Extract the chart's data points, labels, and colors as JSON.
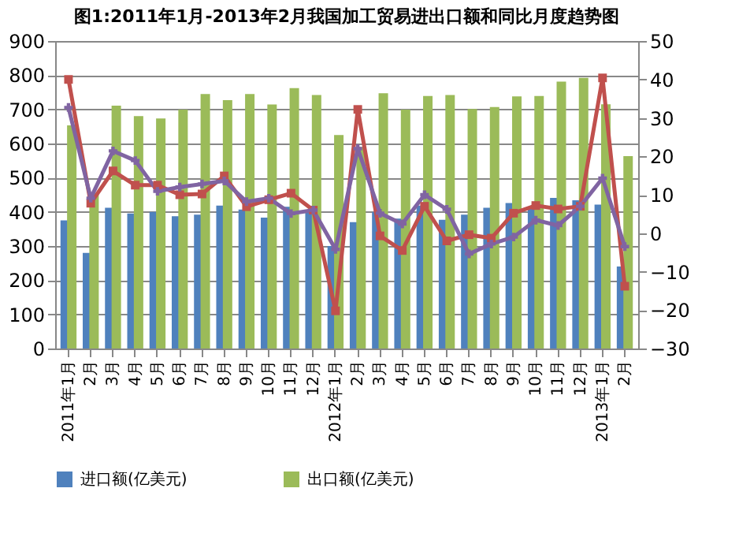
{
  "chart_data": {
    "type": "bar",
    "title": "图1:2011年1月-2013年2月我国加工贸易进出口额和同比月度趋势图",
    "categories": [
      "2011年1月",
      "2月",
      "3月",
      "4月",
      "5月",
      "6月",
      "7月",
      "8月",
      "9月",
      "10月",
      "11月",
      "12月",
      "2012年1月",
      "2月",
      "3月",
      "4月",
      "5月",
      "6月",
      "7月",
      "8月",
      "9月",
      "10月",
      "11月",
      "12月",
      "2013年1月",
      "2月"
    ],
    "series": [
      {
        "name": "进口额(亿美元)",
        "color": "#4f81bd",
        "values": [
          375,
          280,
          412,
          395,
          400,
          387,
          392,
          418,
          407,
          383,
          415,
          398,
          300,
          370,
          400,
          380,
          418,
          377,
          392,
          412,
          426,
          410,
          441,
          434,
          421,
          240
        ]
      },
      {
        "name": "出口额(亿美元)",
        "color": "#9bbb59",
        "values": [
          653,
          455,
          711,
          680,
          673,
          699,
          745,
          727,
          745,
          714,
          762,
          742,
          625,
          590,
          747,
          699,
          739,
          742,
          701,
          707,
          738,
          739,
          781,
          792,
          715,
          563
        ]
      },
      {
        "type": "line",
        "axis": "y2",
        "color": "#c0504d",
        "marker": "square",
        "values": [
          40,
          7.8,
          16.2,
          12.5,
          12.5,
          10,
          10.2,
          14.9,
          6.9,
          8.7,
          10.4,
          6,
          -20.2,
          32.2,
          -0.7,
          -4.5,
          7,
          -2,
          -0.4,
          -1.3,
          5.2,
          7.2,
          6.3,
          7,
          40.4,
          -13.8
        ]
      },
      {
        "type": "line",
        "axis": "y2",
        "color": "#8064a2",
        "marker": "cross",
        "values": [
          32.7,
          9.1,
          21.4,
          18.9,
          10.9,
          12,
          12.8,
          13.6,
          8.2,
          9.1,
          5.1,
          6,
          -4.2,
          22,
          5.2,
          2.4,
          10,
          6.2,
          -5.4,
          -2.8,
          -1,
          3.4,
          2,
          7,
          14.3,
          -3.5
        ]
      }
    ],
    "ylim": [
      0,
      900
    ],
    "yticks": [
      0,
      100,
      200,
      300,
      400,
      500,
      600,
      700,
      800,
      900
    ],
    "y2lim": [
      -30,
      50
    ],
    "y2ticks": [
      -30,
      -20,
      -10,
      0,
      10,
      20,
      30,
      40,
      50
    ],
    "grid": "y",
    "legend": "bottom"
  }
}
